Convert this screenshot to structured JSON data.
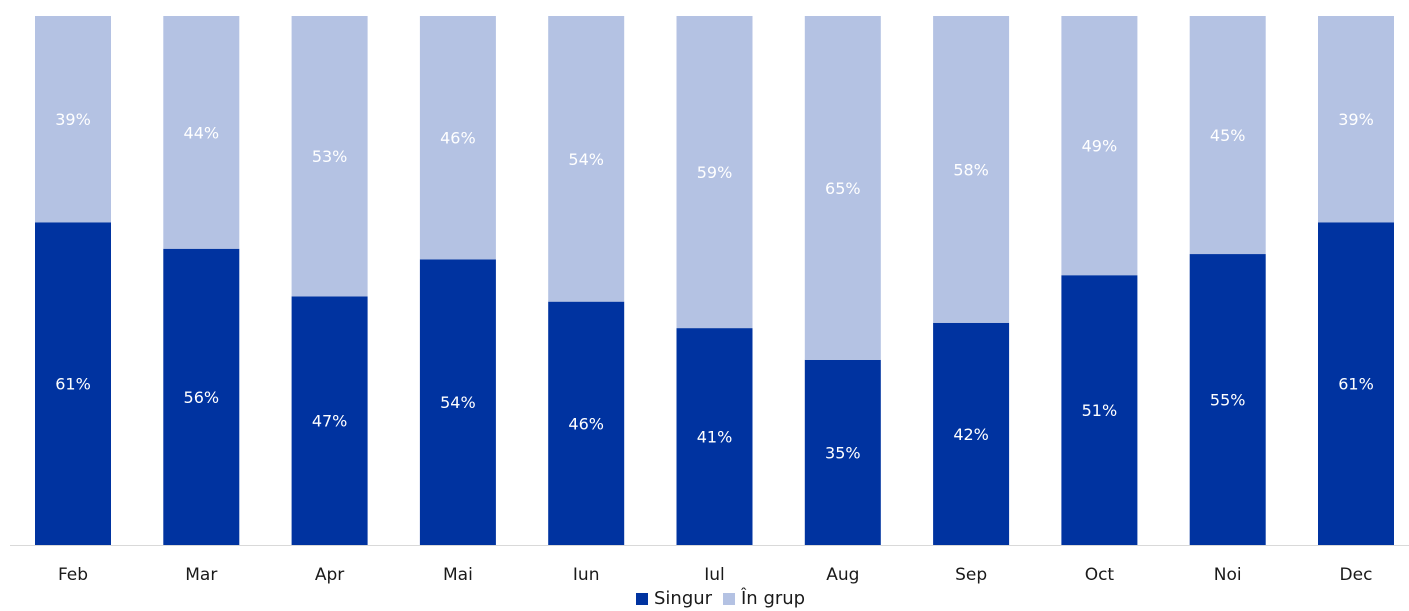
{
  "chart_data": {
    "type": "bar",
    "stacked": true,
    "percent_stacked": true,
    "categories": [
      "Feb",
      "Mar",
      "Apr",
      "Mai",
      "Iun",
      "Iul",
      "Aug",
      "Sep",
      "Oct",
      "Noi",
      "Dec"
    ],
    "series": [
      {
        "name": "Singur",
        "color": "#0033a0",
        "values": [
          61,
          56,
          47,
          54,
          46,
          41,
          35,
          42,
          51,
          55,
          61
        ],
        "labels": [
          "61%",
          "56%",
          "47%",
          "54%",
          "46%",
          "41%",
          "35%",
          "42%",
          "51%",
          "55%",
          "61%"
        ]
      },
      {
        "name": "În grup",
        "color": "#b4c2e3",
        "values": [
          39,
          44,
          53,
          46,
          54,
          59,
          65,
          58,
          49,
          45,
          39
        ],
        "labels": [
          "39%",
          "44%",
          "53%",
          "46%",
          "54%",
          "59%",
          "65%",
          "58%",
          "49%",
          "45%",
          "39%"
        ]
      }
    ],
    "ylim": [
      0,
      100
    ],
    "grid": false,
    "legend_position": "bottom"
  }
}
